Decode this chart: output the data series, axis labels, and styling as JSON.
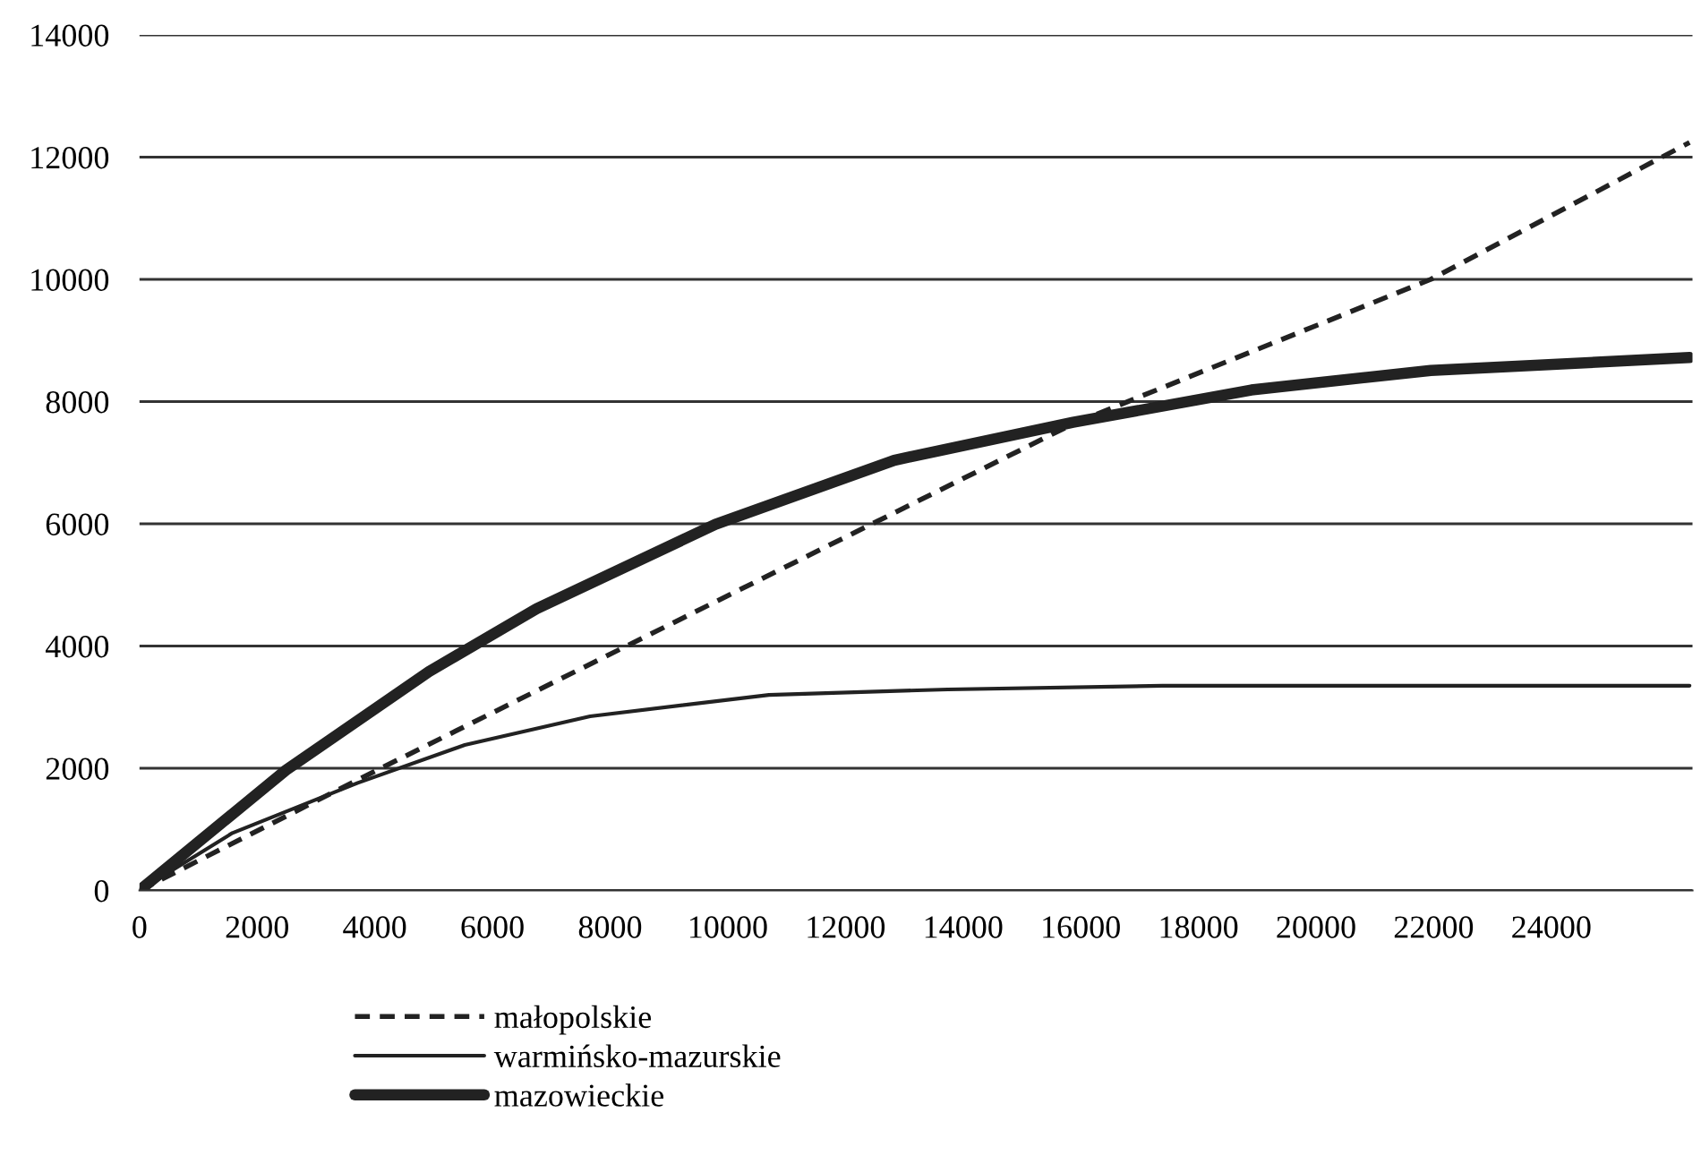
{
  "chart_data": {
    "type": "line",
    "x": [
      0,
      4000,
      15900,
      21950,
      26350
    ],
    "series": [
      {
        "name": "małopolskie",
        "color": "#222222",
        "line_style": "dashed",
        "values": [
          0,
          1950,
          7650,
          10000,
          12240
        ]
      },
      {
        "name": "warmińsko-mazurskie",
        "color": "#222222",
        "line_style": "solid",
        "x": [
          0,
          1580,
          3710,
          5530,
          7660,
          10700,
          13740,
          17390,
          26350
        ],
        "values": [
          0,
          940,
          1760,
          2380,
          2850,
          3200,
          3290,
          3350,
          3350
        ]
      },
      {
        "name": "mazowieckie",
        "color": "#222222",
        "line_style": "solid",
        "x": [
          0,
          2490,
          4920,
          6750,
          9790,
          12830,
          15870,
          18900,
          21950,
          26350
        ],
        "values": [
          0,
          1970,
          3580,
          4610,
          5990,
          7040,
          7660,
          8190,
          8510,
          8720
        ]
      }
    ],
    "xlim": [
      0,
      26400
    ],
    "xticks": [
      0,
      2000,
      4000,
      6000,
      8000,
      10000,
      12000,
      14000,
      16000,
      18000,
      20000,
      22000,
      24000
    ],
    "ylim": [
      0,
      14000
    ],
    "yticks": [
      0,
      2000,
      4000,
      6000,
      8000,
      10000,
      12000,
      14000
    ],
    "grid": "y",
    "legend": "bottom"
  }
}
